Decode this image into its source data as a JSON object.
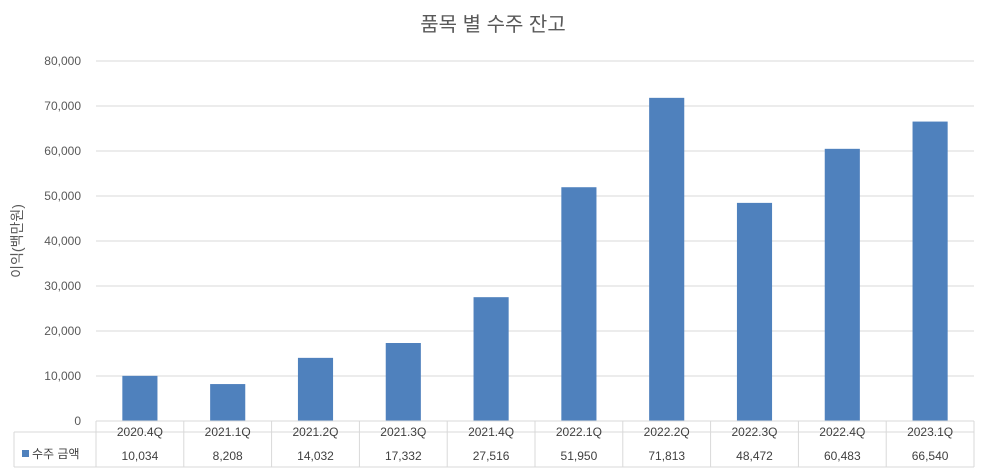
{
  "chart_data": {
    "type": "bar",
    "title": "품목 별 수주 잔고",
    "ylabel": "이익(백만원)",
    "xlabel": "",
    "categories": [
      "2020.4Q",
      "2021.1Q",
      "2021.2Q",
      "2021.3Q",
      "2021.4Q",
      "2022.1Q",
      "2022.2Q",
      "2022.3Q",
      "2022.4Q",
      "2023.1Q"
    ],
    "series": [
      {
        "name": "수주 금액",
        "values": [
          10034,
          8208,
          14032,
          17332,
          27516,
          51950,
          71813,
          48472,
          60483,
          66540
        ],
        "labels": [
          "10,034",
          "8,208",
          "14,032",
          "17,332",
          "27,516",
          "51,950",
          "71,813",
          "48,472",
          "60,483",
          "66,540"
        ],
        "color": "#4F81BD"
      }
    ],
    "ylim": [
      0,
      80000
    ],
    "yticks": [
      "0",
      "10,000",
      "20,000",
      "30,000",
      "40,000",
      "50,000",
      "60,000",
      "70,000",
      "80,000"
    ],
    "grid": true,
    "data_table": true,
    "legend": "data-table"
  },
  "colors": {
    "grid": "#D9D9D9",
    "bar": "#4F81BD"
  }
}
